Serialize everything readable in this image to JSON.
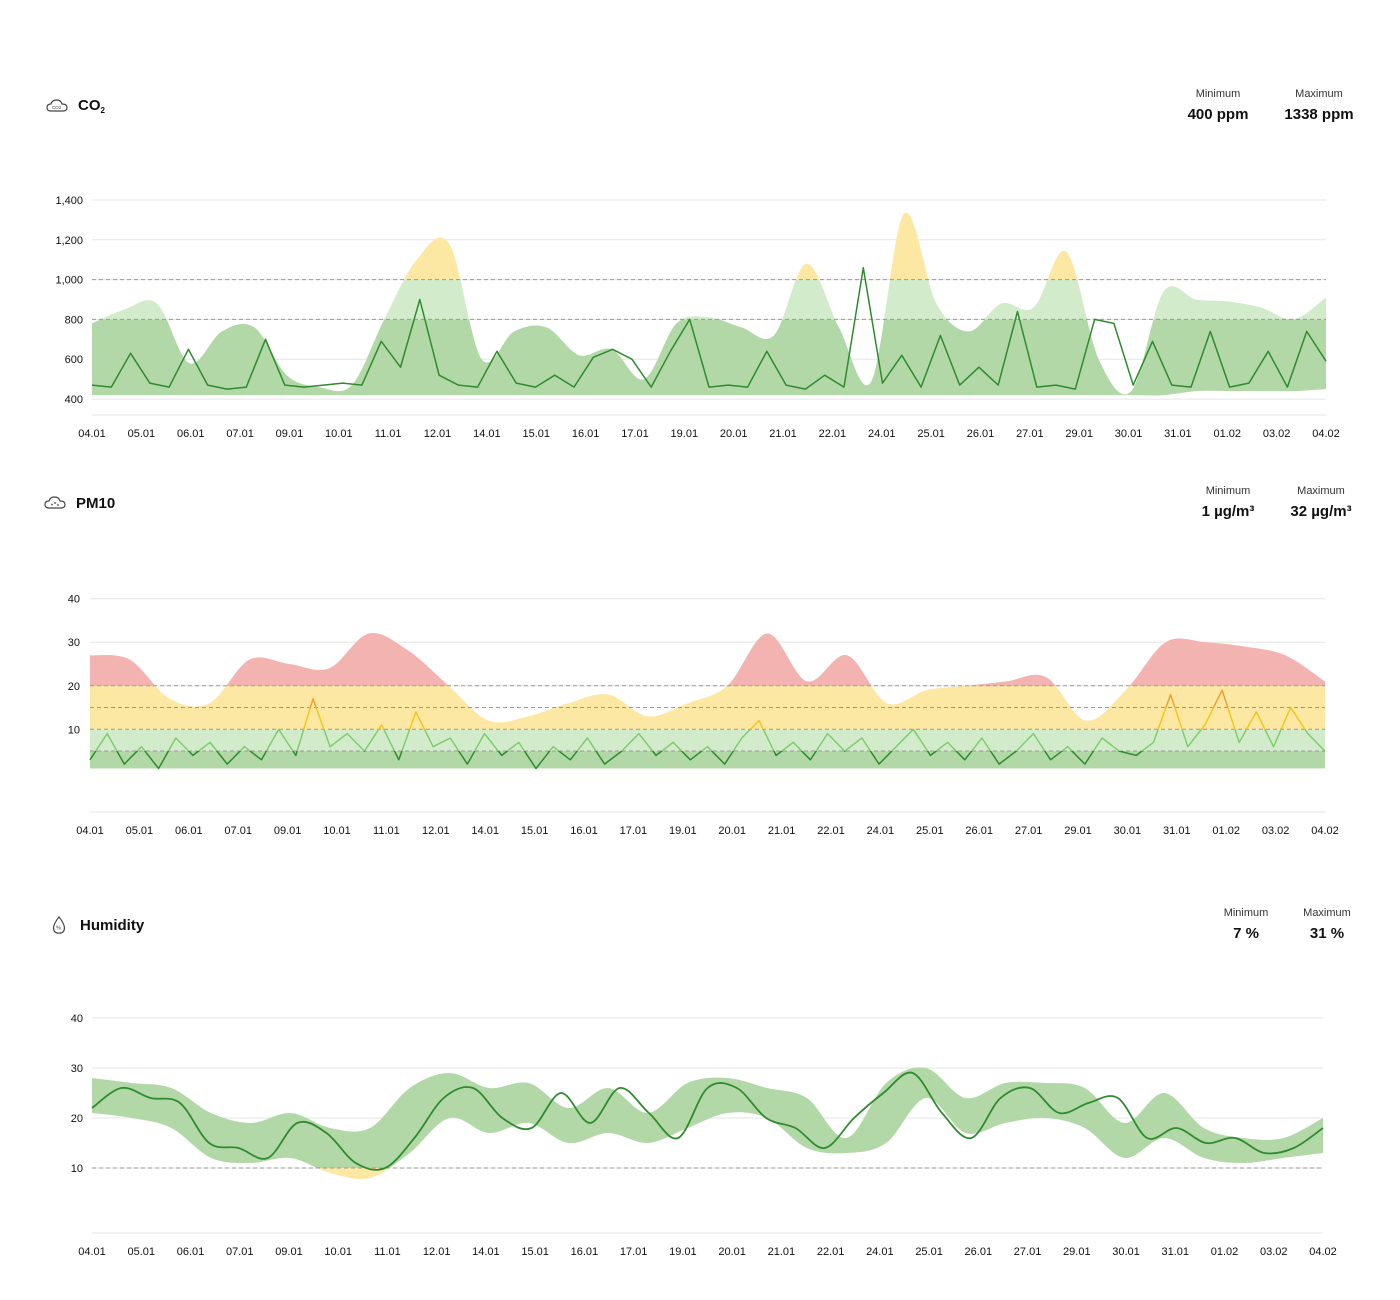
{
  "panels": [
    {
      "id": "co2",
      "title": "CO",
      "title_sub": "2",
      "icon": "cloud-co2-icon",
      "min_label": "Minimum",
      "min_value": "400 ppm",
      "max_label": "Maximum",
      "max_value": "1338 ppm"
    },
    {
      "id": "pm10",
      "title": "PM10",
      "title_sub": "",
      "icon": "cloud-pm-icon",
      "min_label": "Minimum",
      "min_value": "1 µg/m³",
      "max_label": "Maximum",
      "max_value": "32 µg/m³"
    },
    {
      "id": "humidity",
      "title": "Humidity",
      "title_sub": "",
      "icon": "droplet-percent-icon",
      "min_label": "Minimum",
      "min_value": "7 %",
      "max_label": "Maximum",
      "max_value": "31 %"
    }
  ],
  "colors": {
    "green_band": "#b3d8a8",
    "light_green_band": "#d2eccb",
    "yellow_band": "#fde8a3",
    "red_band": "#f2b3b1",
    "line_green": "#2e8b2e",
    "line_light_green": "#7fcc6f",
    "line_yellow": "#f5c518",
    "line_orange": "#f0a030",
    "grid": "#e6e6e6",
    "threshold": "#999999"
  },
  "chart_data": [
    {
      "type": "area",
      "name": "co2",
      "x_labels": [
        "04.01",
        "05.01",
        "06.01",
        "07.01",
        "09.01",
        "10.01",
        "11.01",
        "12.01",
        "14.01",
        "15.01",
        "16.01",
        "17.01",
        "19.01",
        "20.01",
        "21.01",
        "22.01",
        "24.01",
        "25.01",
        "26.01",
        "27.01",
        "29.01",
        "30.01",
        "31.01",
        "01.02",
        "03.02",
        "04.02"
      ],
      "y_ticks": [
        400,
        600,
        800,
        1000,
        1200,
        1400
      ],
      "y_tick_labels": [
        "400",
        "600",
        "800",
        "1,000",
        "1,200",
        "1,400"
      ],
      "ylim": [
        320,
        1450
      ],
      "thresholds": [
        800,
        1000
      ],
      "band_upper": [
        780,
        850,
        880,
        580,
        740,
        760,
        520,
        460,
        470,
        800,
        1100,
        1180,
        600,
        740,
        760,
        620,
        650,
        500,
        780,
        810,
        760,
        720,
        1080,
        760,
        490,
        1330,
        880,
        740,
        880,
        860,
        1140,
        600,
        440,
        940,
        900,
        890,
        860,
        800,
        910
      ],
      "band_lower": [
        420,
        420,
        420,
        420,
        420,
        420,
        420,
        420,
        420,
        420,
        420,
        420,
        420,
        420,
        420,
        420,
        420,
        420,
        420,
        420,
        420,
        420,
        420,
        420,
        420,
        420,
        420,
        420,
        420,
        420,
        420,
        420,
        420,
        420,
        440,
        440,
        440,
        440,
        450
      ],
      "line": [
        470,
        460,
        630,
        480,
        460,
        650,
        470,
        450,
        460,
        700,
        470,
        460,
        470,
        480,
        470,
        690,
        560,
        900,
        520,
        470,
        460,
        640,
        480,
        460,
        520,
        460,
        610,
        650,
        600,
        460,
        640,
        800,
        460,
        470,
        460,
        640,
        470,
        450,
        520,
        460,
        1060,
        480,
        620,
        460,
        720,
        470,
        560,
        470,
        840,
        460,
        470,
        450,
        800,
        780,
        470,
        690,
        470,
        460,
        740,
        460,
        480,
        640,
        460,
        740,
        590
      ],
      "line_max": 1060
    },
    {
      "type": "area",
      "name": "pm10",
      "x_labels": [
        "04.01",
        "05.01",
        "06.01",
        "07.01",
        "09.01",
        "10.01",
        "11.01",
        "12.01",
        "14.01",
        "15.01",
        "16.01",
        "17.01",
        "19.01",
        "20.01",
        "21.01",
        "22.01",
        "24.01",
        "25.01",
        "26.01",
        "27.01",
        "29.01",
        "30.01",
        "31.01",
        "01.02",
        "03.02",
        "04.02"
      ],
      "y_ticks": [
        10,
        20,
        30,
        40
      ],
      "y_tick_labels": [
        "10",
        "20",
        "30",
        "40"
      ],
      "ylim": [
        -9,
        42
      ],
      "thresholds": [
        5,
        10,
        15,
        20
      ],
      "band_upper": [
        27,
        26,
        17,
        16,
        26,
        25,
        24,
        32,
        28,
        20,
        12,
        13,
        16,
        18,
        13,
        16,
        20,
        32,
        21,
        27,
        16,
        19,
        20,
        21,
        22,
        12,
        19,
        30,
        30,
        29,
        27,
        21
      ],
      "band_lower": [
        1,
        1,
        1,
        1,
        1,
        1,
        1,
        1,
        1,
        1,
        1,
        1,
        1,
        1,
        1,
        1,
        1,
        1,
        1,
        1,
        1,
        1,
        1,
        1,
        1,
        1,
        1,
        1,
        1,
        1,
        1,
        1
      ],
      "line": [
        3,
        9,
        2,
        6,
        1,
        8,
        4,
        7,
        2,
        6,
        3,
        10,
        4,
        17,
        6,
        9,
        5,
        11,
        3,
        14,
        6,
        8,
        2,
        9,
        4,
        7,
        1,
        6,
        3,
        8,
        2,
        5,
        9,
        4,
        7,
        3,
        6,
        2,
        8,
        12,
        4,
        7,
        3,
        9,
        5,
        8,
        2,
        6,
        10,
        4,
        7,
        3,
        8,
        2,
        5,
        9,
        3,
        6,
        2,
        8,
        5,
        4,
        7,
        18,
        6,
        11,
        19,
        7,
        14,
        6,
        15,
        9,
        5
      ],
      "line_max": 19
    },
    {
      "type": "area",
      "name": "humidity",
      "x_labels": [
        "04.01",
        "05.01",
        "06.01",
        "07.01",
        "09.01",
        "10.01",
        "11.01",
        "12.01",
        "14.01",
        "15.01",
        "16.01",
        "17.01",
        "19.01",
        "20.01",
        "21.01",
        "22.01",
        "24.01",
        "25.01",
        "26.01",
        "27.01",
        "29.01",
        "30.01",
        "31.01",
        "01.02",
        "03.02",
        "04.02"
      ],
      "y_ticks": [
        10,
        20,
        30,
        40
      ],
      "y_tick_labels": [
        "10",
        "20",
        "30",
        "40"
      ],
      "ylim": [
        -3,
        42
      ],
      "thresholds": [
        10
      ],
      "band_upper": [
        28,
        27,
        26,
        21,
        19,
        21,
        18,
        18,
        26,
        29,
        26,
        27,
        22,
        26,
        21,
        27,
        28,
        26,
        24,
        16,
        27,
        30,
        24,
        27,
        27,
        26,
        19,
        25,
        18,
        16,
        16,
        20
      ],
      "band_lower": [
        21,
        20,
        18,
        12,
        11,
        12,
        9,
        8,
        13,
        20,
        17,
        19,
        15,
        17,
        15,
        18,
        21,
        20,
        14,
        13,
        15,
        24,
        17,
        19,
        20,
        18,
        12,
        16,
        12,
        11,
        12,
        13
      ],
      "line": [
        22,
        26,
        24,
        23,
        15,
        14,
        12,
        19,
        17,
        11,
        10,
        16,
        24,
        26,
        20,
        18,
        25,
        19,
        26,
        21,
        16,
        26,
        26,
        20,
        18,
        14,
        20,
        25,
        29,
        21,
        16,
        24,
        26,
        21,
        23,
        24,
        16,
        18,
        15,
        16,
        13,
        14,
        18
      ]
    }
  ]
}
